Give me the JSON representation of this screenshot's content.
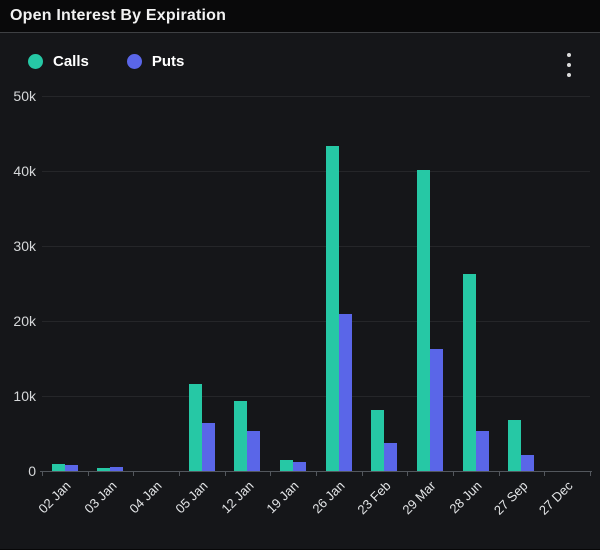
{
  "header": {
    "title": "Open Interest By Expiration"
  },
  "legend": [
    {
      "label": "Calls",
      "color": "#26c8a5"
    },
    {
      "label": "Puts",
      "color": "#5a66e8"
    }
  ],
  "icons": {
    "menu": "kebab-vertical"
  },
  "chart_data": {
    "type": "bar",
    "title": "Open Interest By Expiration",
    "categories": [
      "02 Jan",
      "03 Jan",
      "04 Jan",
      "05 Jan",
      "12 Jan",
      "19 Jan",
      "26 Jan",
      "23 Feb",
      "29 Mar",
      "28 Jun",
      "27 Sep",
      "27 Dec"
    ],
    "series": [
      {
        "name": "Calls",
        "color": "#26c8a5",
        "values": [
          1000,
          400,
          0,
          11600,
          9300,
          1500,
          43300,
          8200,
          40200,
          26300,
          6800,
          0
        ]
      },
      {
        "name": "Puts",
        "color": "#5a66e8",
        "values": [
          800,
          500,
          0,
          6400,
          5400,
          1200,
          21000,
          3800,
          16300,
          5400,
          2100,
          0
        ]
      }
    ],
    "xlabel": "",
    "ylabel": "",
    "ylim": [
      0,
      50000
    ],
    "yticks": [
      {
        "label": "0",
        "value": 0
      },
      {
        "label": "10k",
        "value": 10000
      },
      {
        "label": "20k",
        "value": 20000
      },
      {
        "label": "30k",
        "value": 30000
      },
      {
        "label": "40k",
        "value": 40000
      },
      {
        "label": "50k",
        "value": 50000
      }
    ],
    "grid": true,
    "legend_position": "top-left"
  }
}
